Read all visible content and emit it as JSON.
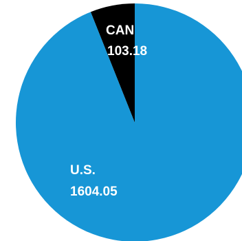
{
  "chart_data": {
    "type": "pie",
    "start_angle_deg": 0,
    "direction": "counterclockwise",
    "slices": [
      {
        "label": "CAN",
        "value": 103.18,
        "value_text": "103.18",
        "color": "#000000"
      },
      {
        "label": "U.S.",
        "value": 1604.05,
        "value_text": "1604.05",
        "color": "#1796d6"
      }
    ]
  }
}
